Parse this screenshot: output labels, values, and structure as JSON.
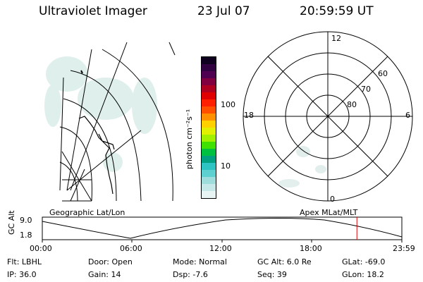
{
  "header": {
    "instrument": "Ultraviolet Imager",
    "date": "23 Jul 07",
    "time": "20:59:59 UT"
  },
  "colorbar": {
    "unit_label": "photon cm⁻²s⁻¹",
    "tick_100": "100",
    "tick_10": "10",
    "colors": [
      "#e8f4f4",
      "#c6e8e8",
      "#9fdcdc",
      "#5fd0d0",
      "#2ec4c4",
      "#00a080",
      "#00c040",
      "#40e000",
      "#a0f000",
      "#e0f000",
      "#ffd000",
      "#ff9000",
      "#ff5000",
      "#ff2000",
      "#e00000",
      "#b00020",
      "#800040",
      "#500050",
      "#300040",
      "#100020"
    ]
  },
  "polar": {
    "mlt_12": "12",
    "mlt_18": "18",
    "mlt_6": "6",
    "mlt_0": "0",
    "lat_60": "60",
    "lat_70": "70",
    "lat_80": "80"
  },
  "timeline": {
    "left_title": "Geographic Lat/Lon",
    "right_title": "Apex  MLat/MLT",
    "ylabel": "GC Alt",
    "ymax": "9.0",
    "ymin": "1.8",
    "ticks": [
      "00:00",
      "06:00",
      "12:00",
      "18:00",
      "23:59"
    ],
    "current_time_fraction": 0.875,
    "marker_color": "#e00000"
  },
  "info": {
    "filter": "Flt: LBHL",
    "ip": "IP: 36.0",
    "door": "Door: Open",
    "gain": "Gain: 14",
    "mode": "Mode: Normal",
    "dsp": "Dsp:   -7.6",
    "gc_alt": "GC Alt: 6.0 Re",
    "seq": "Seq: 39",
    "glat": "GLat: -69.0",
    "glon": "GLon:  18.2"
  }
}
